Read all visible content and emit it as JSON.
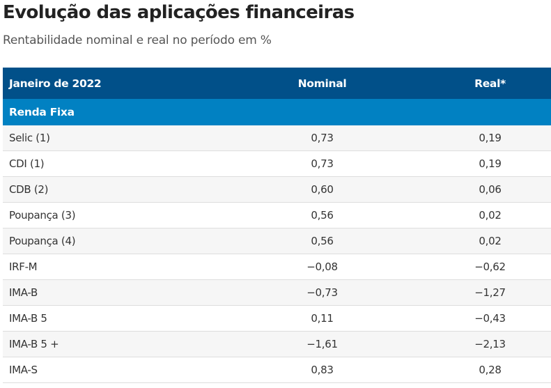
{
  "title": "Evolução das aplicações financeiras",
  "subtitle": "Rentabilidade nominal e real no período em %",
  "table": {
    "header": {
      "period": "Janeiro de 2022",
      "nominal": "Nominal",
      "real": "Real*"
    },
    "section": "Renda Fixa",
    "rows": [
      {
        "label": "Selic (1)",
        "nominal": "0,73",
        "real": "0,19"
      },
      {
        "label": "CDI (1)",
        "nominal": "0,73",
        "real": "0,19"
      },
      {
        "label": "CDB (2)",
        "nominal": "0,60",
        "real": "0,06"
      },
      {
        "label": "Poupança (3)",
        "nominal": "0,56",
        "real": "0,02"
      },
      {
        "label": "Poupança (4)",
        "nominal": "0,56",
        "real": "0,02"
      },
      {
        "label": "IRF-M",
        "nominal": "−0,08",
        "real": "−0,62"
      },
      {
        "label": "IMA-B",
        "nominal": "−0,73",
        "real": "−1,27"
      },
      {
        "label": "IMA-B 5",
        "nominal": "0,11",
        "real": "−0,43"
      },
      {
        "label": "IMA-B 5 +",
        "nominal": "−1,61",
        "real": "−2,13"
      },
      {
        "label": "IMA-S",
        "nominal": "0,83",
        "real": "0,28"
      }
    ]
  }
}
